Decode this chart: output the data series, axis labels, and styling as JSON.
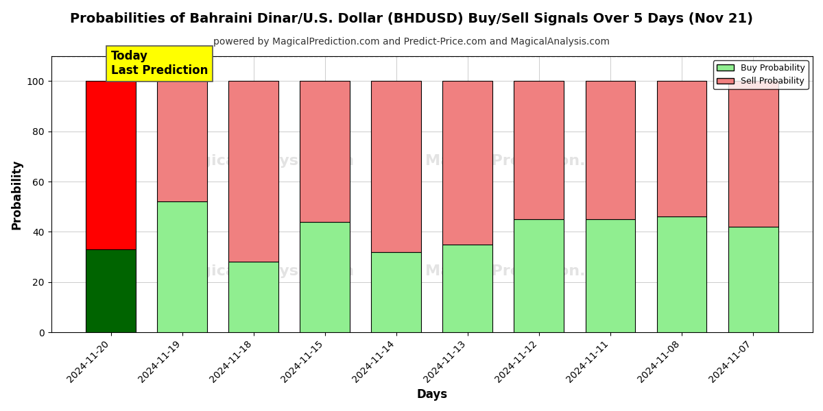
{
  "title": "Probabilities of Bahraini Dinar/U.S. Dollar (BHDUSD) Buy/Sell Signals Over 5 Days (Nov 21)",
  "subtitle": "powered by MagicalPrediction.com and Predict-Price.com and MagicalAnalysis.com",
  "xlabel": "Days",
  "ylabel": "Probability",
  "categories": [
    "2024-11-20",
    "2024-11-19",
    "2024-11-18",
    "2024-11-15",
    "2024-11-14",
    "2024-11-13",
    "2024-11-12",
    "2024-11-11",
    "2024-11-08",
    "2024-11-07"
  ],
  "buy_values": [
    33,
    52,
    28,
    44,
    32,
    35,
    45,
    45,
    46,
    42
  ],
  "sell_values": [
    67,
    48,
    72,
    56,
    68,
    65,
    55,
    55,
    54,
    58
  ],
  "today_bar_buy_color": "#006400",
  "today_bar_sell_color": "#ff0000",
  "normal_bar_buy_color": "#90EE90",
  "normal_bar_sell_color": "#F08080",
  "bar_edge_color": "#000000",
  "today_annotation_text": "Today\nLast Prediction",
  "today_annotation_bg": "#ffff00",
  "ylim": [
    0,
    110
  ],
  "yticks": [
    0,
    20,
    40,
    60,
    80,
    100
  ],
  "dashed_line_y": 110,
  "legend_buy_label": "Buy Probability",
  "legend_sell_label": "Sell Probability",
  "background_color": "#ffffff",
  "grid_color": "#cccccc",
  "title_fontsize": 14,
  "subtitle_fontsize": 10,
  "axis_label_fontsize": 12,
  "tick_fontsize": 10
}
